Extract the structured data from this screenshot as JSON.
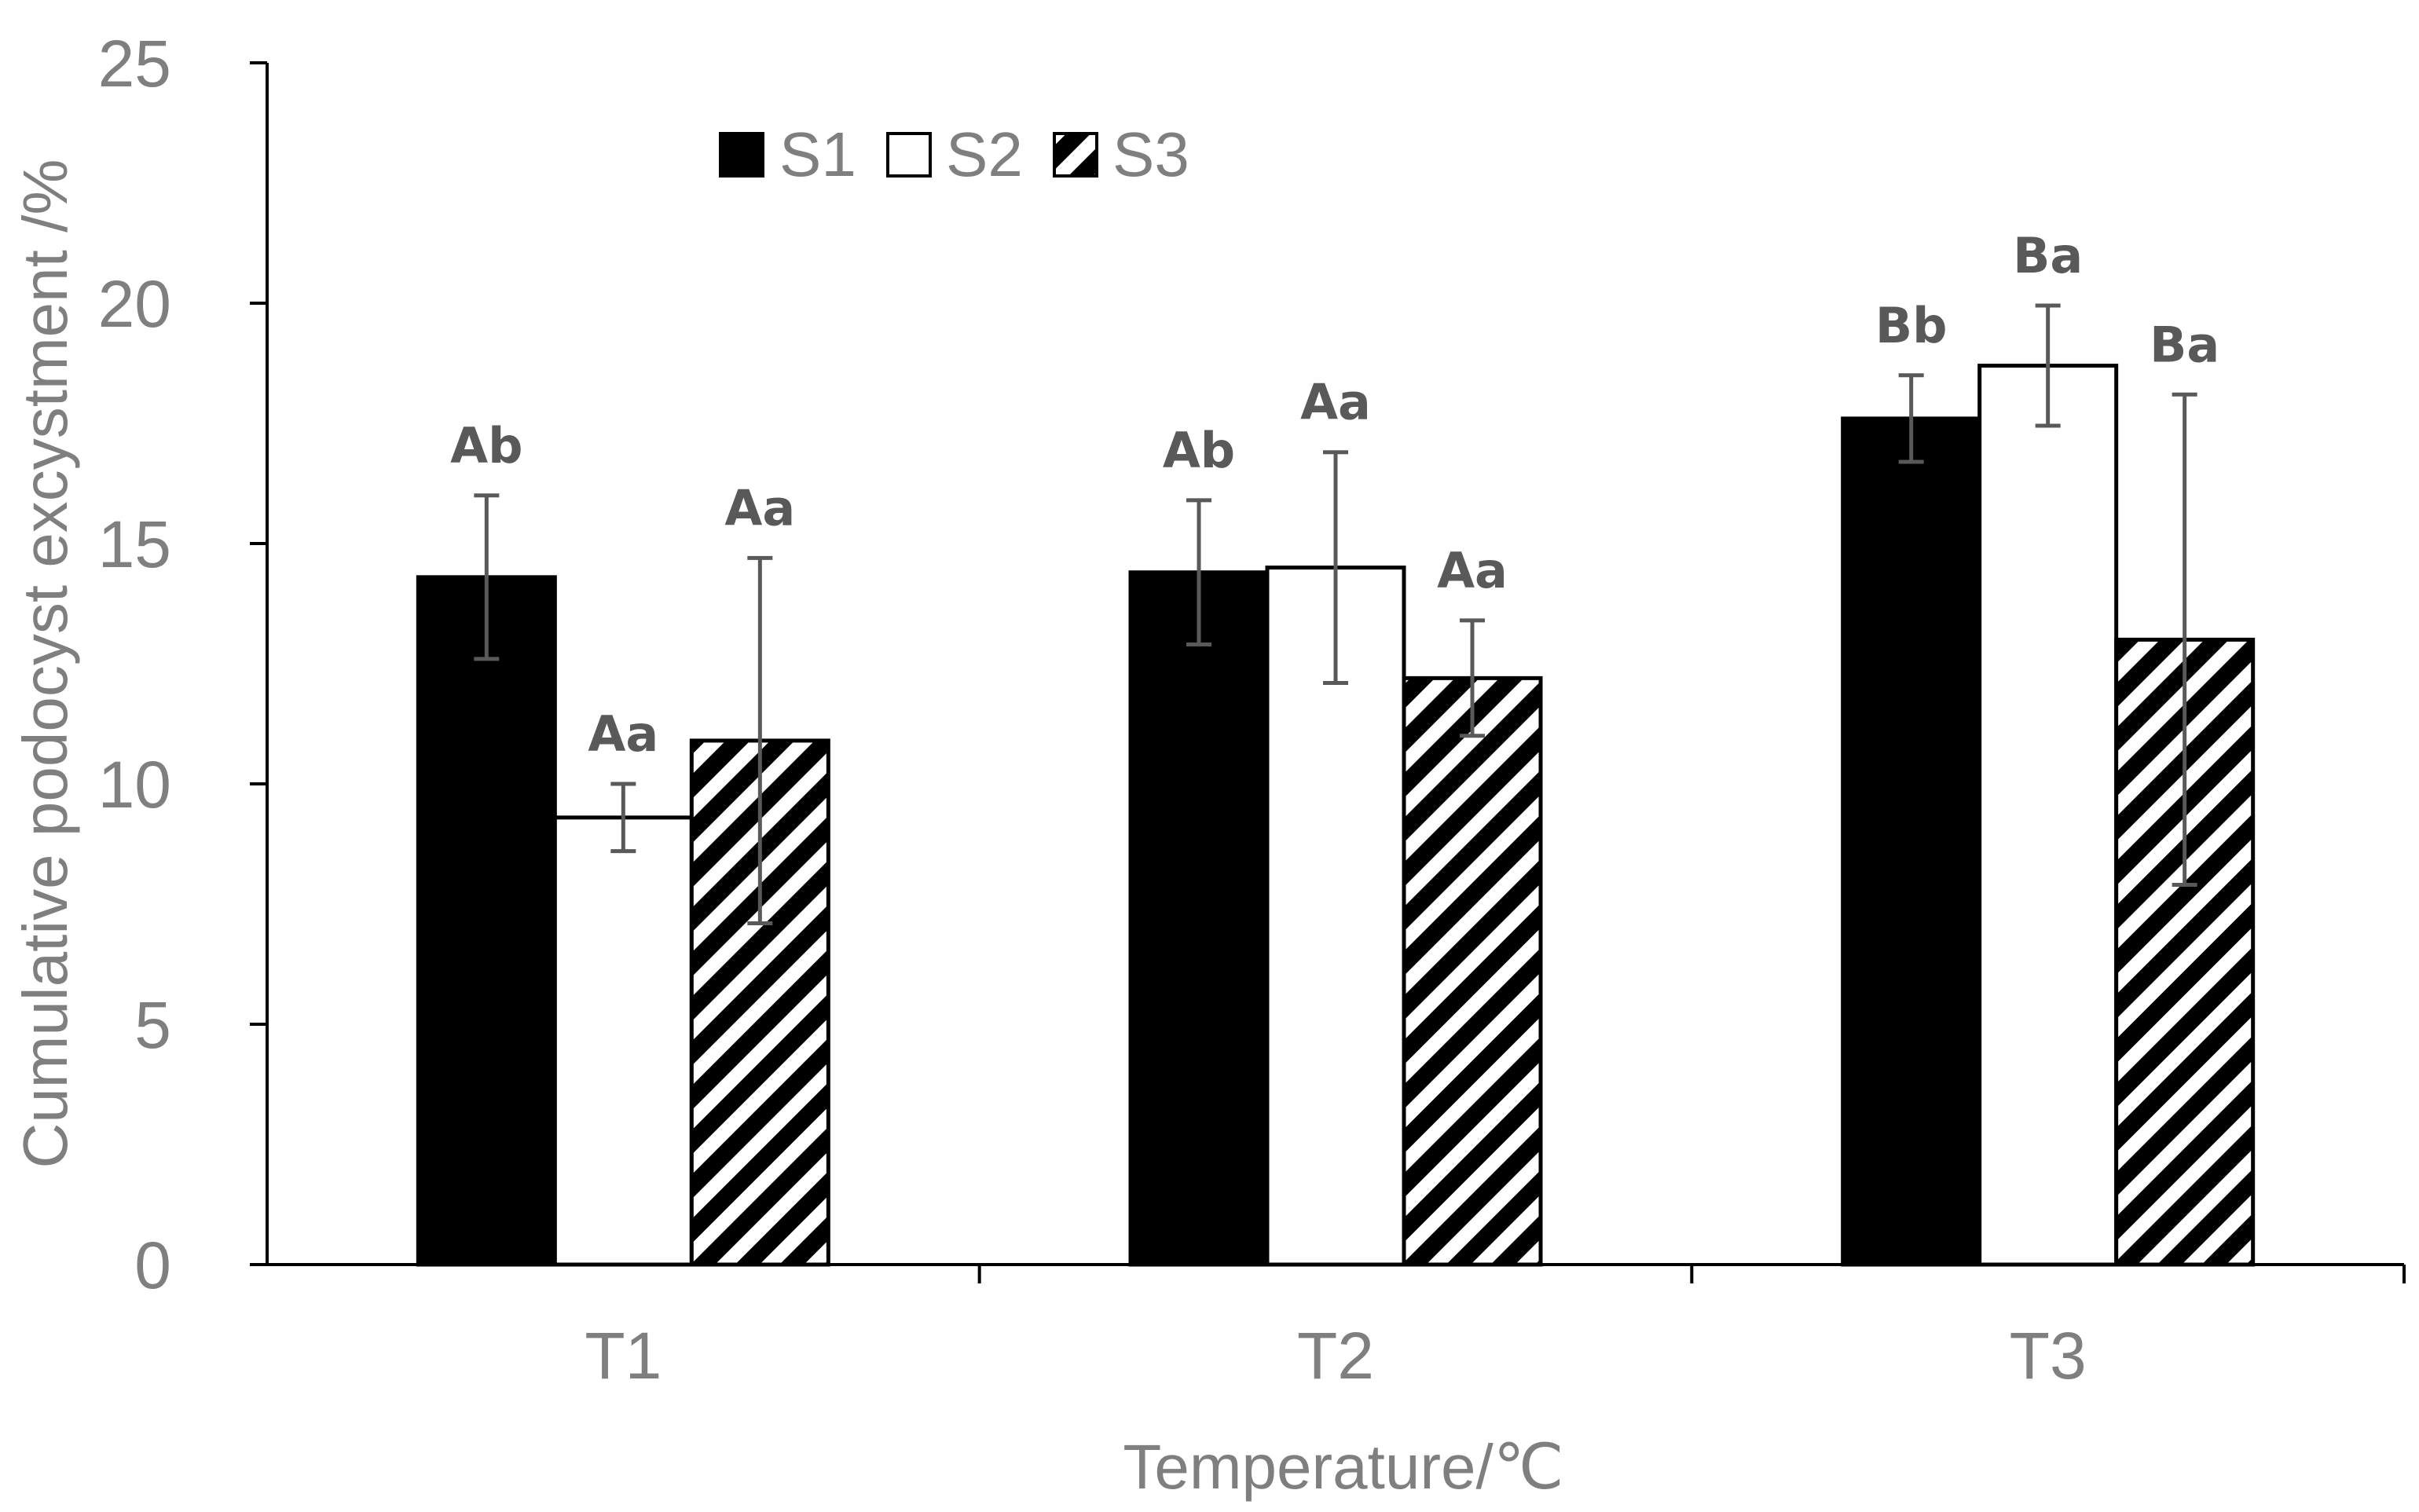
{
  "chart_data": {
    "type": "bar",
    "title": "",
    "xlabel": "Temperature/℃",
    "ylabel": "Cumulative podocyst excystment /%",
    "categories": [
      "T1",
      "T2",
      "T3"
    ],
    "ylim": [
      0,
      25
    ],
    "yticks": [
      0,
      5,
      10,
      15,
      20,
      25
    ],
    "grid": false,
    "legend": "top-center",
    "series": [
      {
        "name": "S1",
        "fill": "solid-black",
        "values": [
          14.3,
          14.4,
          17.6
        ],
        "errors": [
          1.7,
          1.5,
          0.9
        ],
        "labels": [
          "Ab",
          "Ab",
          "Bb"
        ]
      },
      {
        "name": "S2",
        "fill": "white",
        "values": [
          9.3,
          14.5,
          18.7
        ],
        "errors": [
          0.7,
          2.4,
          1.25
        ],
        "labels": [
          "Aa",
          "Aa",
          "Ba"
        ]
      },
      {
        "name": "S3",
        "fill": "diagonal-hatch",
        "values": [
          10.9,
          12.2,
          13.0
        ],
        "errors": [
          3.8,
          1.2,
          5.1
        ],
        "labels": [
          "Aa",
          "Aa",
          "Ba"
        ]
      }
    ]
  },
  "colors": {
    "axis": "#000000",
    "text": "#7f7f7f",
    "annotation": "#595959",
    "error_bar": "#595959",
    "bar_black": "#000000",
    "bar_white": "#ffffff"
  }
}
